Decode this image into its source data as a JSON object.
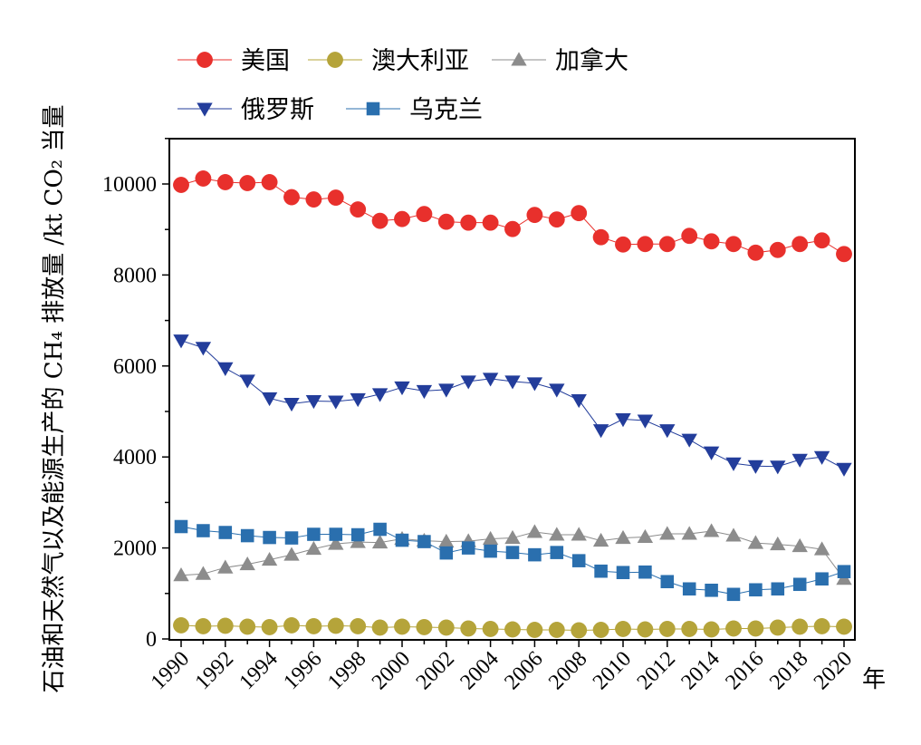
{
  "chart_data": {
    "type": "line",
    "title": "",
    "ylabel": "石油和天然气以及能源生产的 CH₄ 排放量 /kt CO₂ 当量",
    "xlabel": "年",
    "xlim": [
      1990,
      2020
    ],
    "ylim": [
      0,
      11000
    ],
    "yticks": [
      0,
      2000,
      4000,
      6000,
      8000,
      10000
    ],
    "xticks": [
      1990,
      1992,
      1994,
      1996,
      1998,
      2000,
      2002,
      2004,
      2006,
      2008,
      2010,
      2012,
      2014,
      2016,
      2018,
      2020
    ],
    "legend_position": "top-left, above plot",
    "x": [
      1990,
      1991,
      1992,
      1993,
      1994,
      1995,
      1996,
      1997,
      1998,
      1999,
      2000,
      2001,
      2002,
      2003,
      2004,
      2005,
      2006,
      2007,
      2008,
      2009,
      2010,
      2011,
      2012,
      2013,
      2014,
      2015,
      2016,
      2017,
      2018,
      2019,
      2020
    ],
    "series": [
      {
        "name": "美国",
        "color": "#e8302c",
        "marker": "circle",
        "values": [
          9980,
          10120,
          10040,
          10020,
          10040,
          9710,
          9660,
          9700,
          9440,
          9190,
          9230,
          9340,
          9170,
          9150,
          9150,
          9010,
          9320,
          9220,
          9360,
          8830,
          8670,
          8680,
          8680,
          8860,
          8740,
          8680,
          8490,
          8550,
          8680,
          8760,
          8460
        ]
      },
      {
        "name": "澳大利亚",
        "color": "#b5a43a",
        "marker": "circle",
        "values": [
          300,
          280,
          290,
          270,
          260,
          300,
          280,
          290,
          280,
          250,
          270,
          260,
          250,
          230,
          220,
          210,
          200,
          200,
          190,
          200,
          220,
          210,
          220,
          220,
          210,
          230,
          230,
          250,
          270,
          280,
          270
        ]
      },
      {
        "name": "加拿大",
        "color": "#8c8c8c",
        "marker": "triangle-up",
        "values": [
          1400,
          1430,
          1570,
          1640,
          1740,
          1850,
          1980,
          2090,
          2130,
          2120,
          2200,
          2160,
          2140,
          2150,
          2200,
          2220,
          2350,
          2290,
          2290,
          2160,
          2220,
          2240,
          2310,
          2310,
          2370,
          2270,
          2110,
          2080,
          2040,
          1970,
          1320
        ]
      },
      {
        "name": "俄罗斯",
        "color": "#233d9b",
        "marker": "triangle-down",
        "values": [
          6560,
          6400,
          5950,
          5680,
          5290,
          5170,
          5230,
          5220,
          5270,
          5380,
          5530,
          5450,
          5480,
          5660,
          5720,
          5660,
          5620,
          5480,
          5250,
          4590,
          4830,
          4800,
          4590,
          4380,
          4100,
          3860,
          3800,
          3790,
          3940,
          4000,
          3740
        ]
      },
      {
        "name": "乌克兰",
        "color": "#2a6fae",
        "marker": "square",
        "values": [
          2470,
          2380,
          2340,
          2270,
          2230,
          2220,
          2300,
          2300,
          2290,
          2410,
          2170,
          2140,
          1890,
          2000,
          1930,
          1900,
          1850,
          1900,
          1720,
          1490,
          1460,
          1470,
          1260,
          1100,
          1070,
          980,
          1080,
          1100,
          1200,
          1320,
          1480
        ]
      }
    ]
  }
}
